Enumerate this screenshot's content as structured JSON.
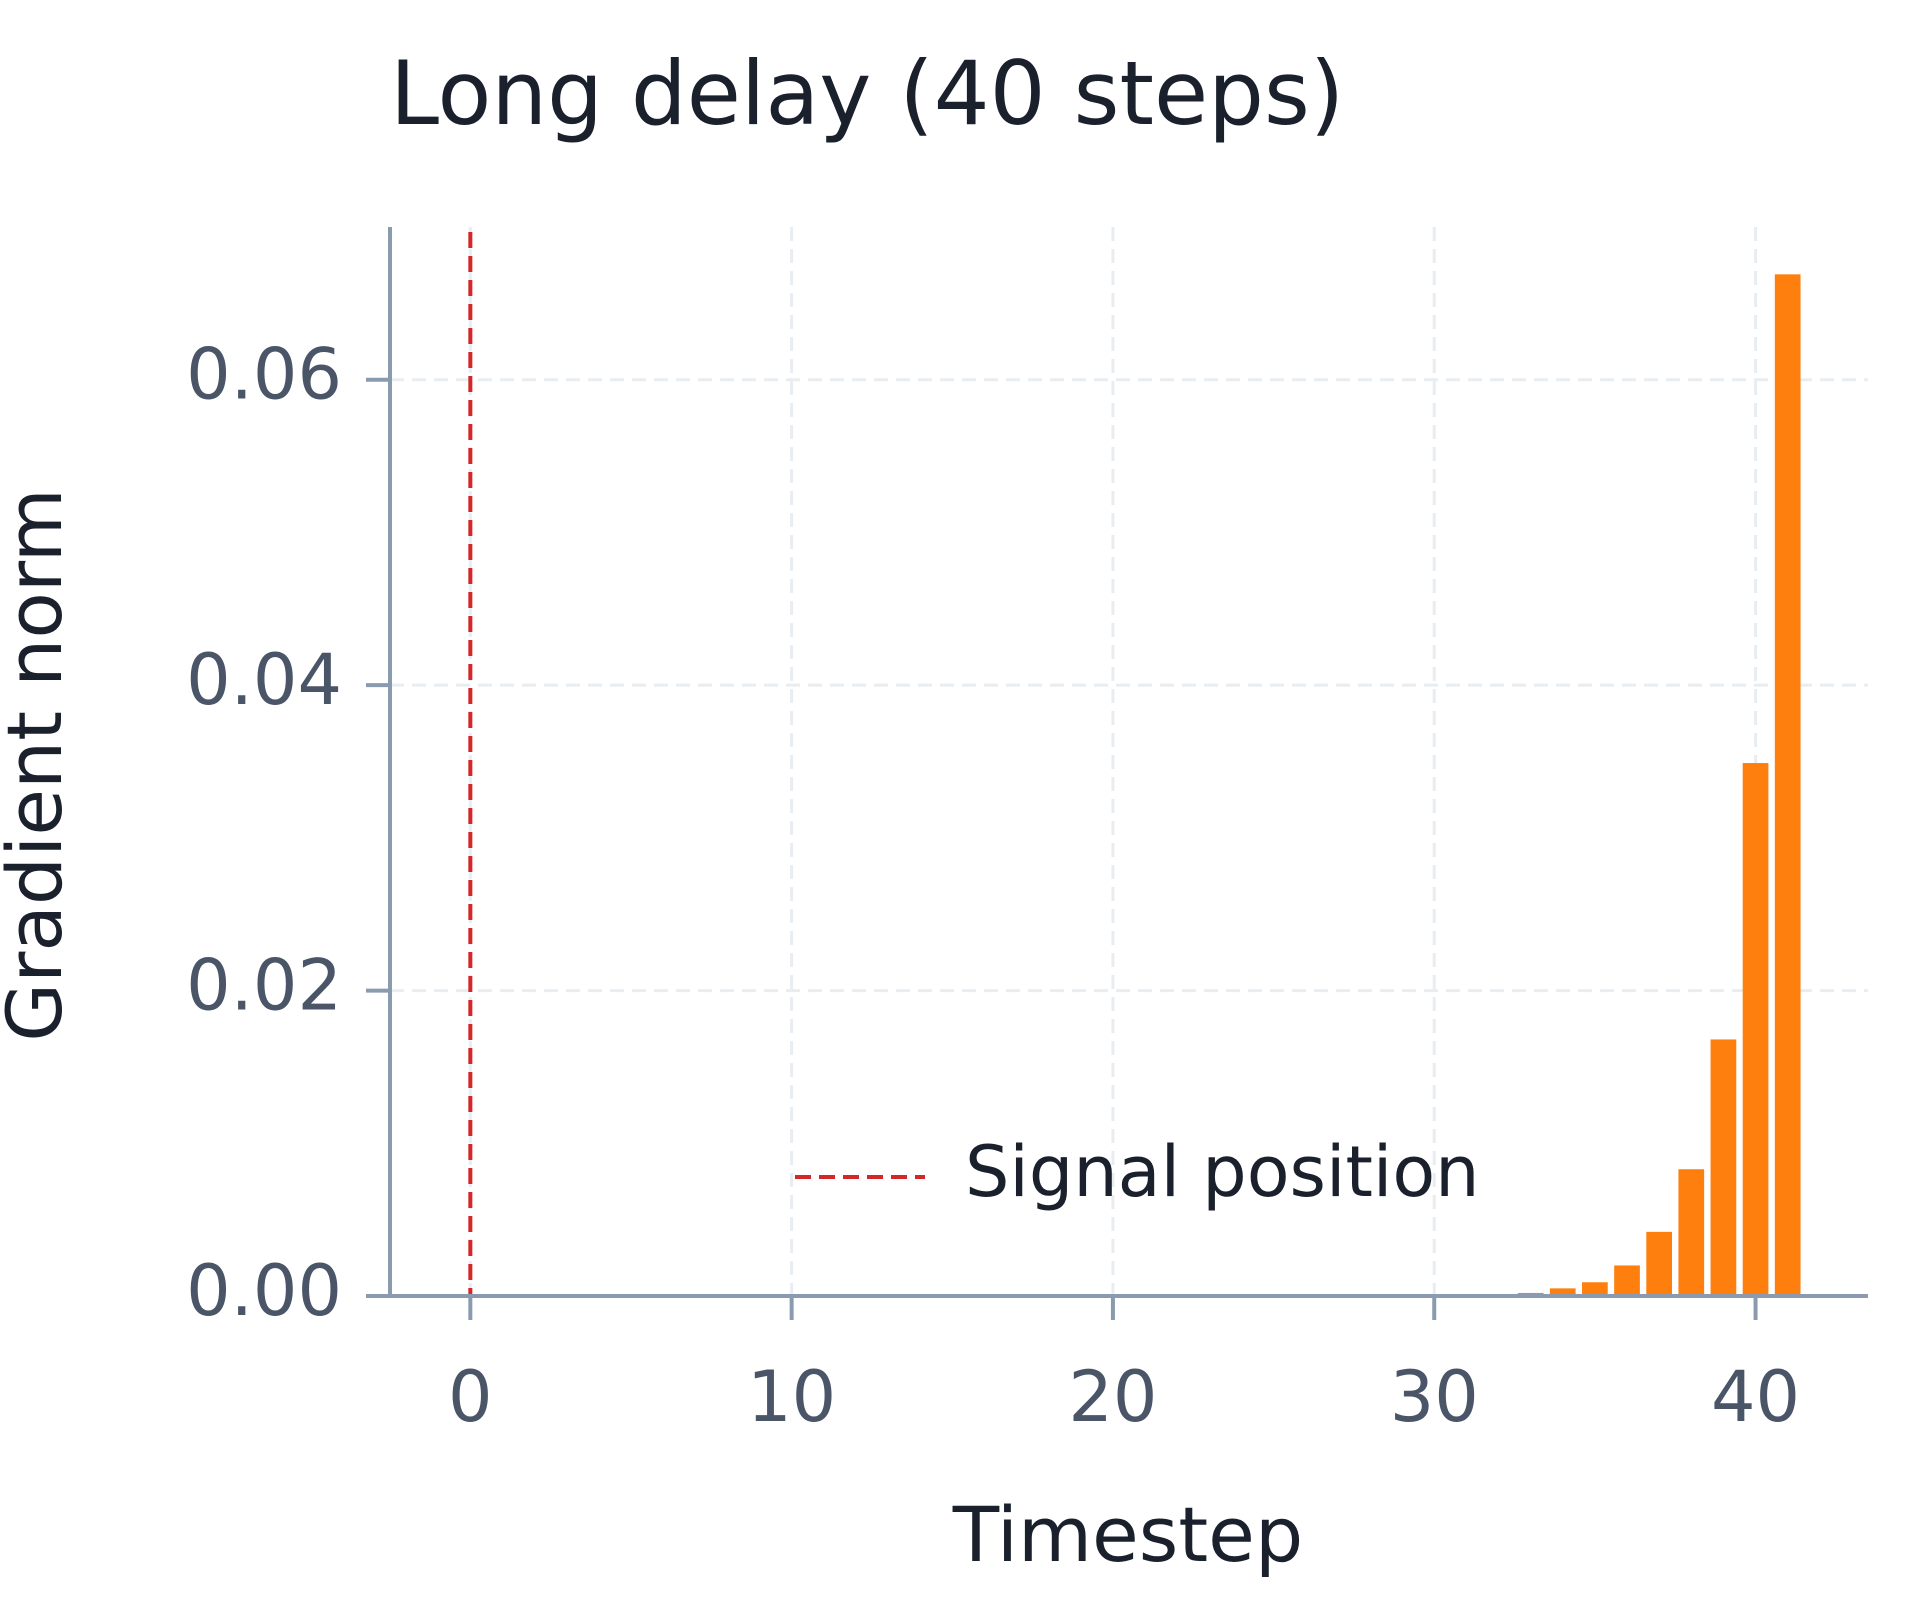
{
  "chart_data": {
    "type": "bar",
    "title": "Long delay (40 steps)",
    "x_label": "Timestep",
    "y_label": "Gradient norm",
    "x": [
      0,
      1,
      2,
      3,
      4,
      5,
      6,
      7,
      8,
      9,
      10,
      11,
      12,
      13,
      14,
      15,
      16,
      17,
      18,
      19,
      20,
      21,
      22,
      23,
      24,
      25,
      26,
      27,
      28,
      29,
      30,
      31,
      32,
      33,
      34,
      35,
      36,
      37,
      38,
      39,
      40,
      41
    ],
    "values": [
      0,
      0,
      0,
      0,
      0,
      0,
      0,
      0,
      0,
      0,
      0,
      0,
      0,
      0,
      0,
      0,
      0,
      0,
      0,
      0,
      0,
      0,
      0,
      0,
      0,
      0,
      0,
      0,
      0,
      1e-05,
      2e-05,
      5e-05,
      0.0001,
      0.0002,
      0.0005,
      0.0009,
      0.002,
      0.0042,
      0.0083,
      0.0168,
      0.0349,
      0.0669
    ],
    "color": "#ff7f0e",
    "xlim": [
      -2.5,
      43.5
    ],
    "xticks": [
      0,
      10,
      20,
      30,
      40
    ],
    "ylim": [
      0,
      0.07
    ],
    "yticks": [
      {
        "value": 0,
        "label": "0.00"
      },
      {
        "value": 0.02,
        "label": "0.02"
      },
      {
        "value": 0.04,
        "label": "0.04"
      },
      {
        "value": 0.06,
        "label": "0.06"
      }
    ],
    "grid": true,
    "vline": {
      "x": 0,
      "name": "Signal position",
      "color": "#d62728"
    }
  }
}
